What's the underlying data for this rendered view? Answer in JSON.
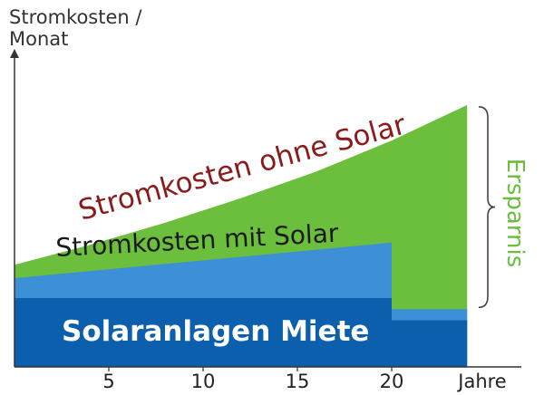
{
  "chart_data": {
    "type": "area",
    "ylabel": "Stromkosten /\nMonat",
    "xlabel": "Jahre",
    "x_ticks": [
      5,
      10,
      15,
      20
    ],
    "xlim": [
      0,
      24
    ],
    "series": [
      {
        "name": "Solaranlagen Miete",
        "x": [
          0,
          20,
          20,
          24
        ],
        "y": [
          1.55,
          1.55,
          1.05,
          1.05
        ],
        "color": "#0c5fad"
      },
      {
        "name": "Stromkosten mit Solar",
        "x": [
          0,
          20,
          20,
          24
        ],
        "y": [
          2.0,
          2.8,
          1.3,
          1.3
        ],
        "color": "#3d8fd6"
      },
      {
        "name": "Stromkosten ohne Solar",
        "x": [
          0,
          4,
          8,
          12,
          16,
          20,
          24
        ],
        "y": [
          2.3,
          2.75,
          3.25,
          3.8,
          4.4,
          5.1,
          5.9
        ],
        "color": "#6cbf3d"
      }
    ],
    "annotations": {
      "ohne_solar": "Stromkosten ohne Solar",
      "mit_solar": "Stromkosten mit Solar",
      "miete": "Solaranlagen Miete",
      "ersparnis": "Ersparnis"
    },
    "colors": {
      "ohne_text": "#8b1a1a",
      "mit_text": "#1a1a1a",
      "miete_text": "#ffffff",
      "ersparnis_text": "#6cbf3d",
      "axis": "#333333"
    }
  }
}
